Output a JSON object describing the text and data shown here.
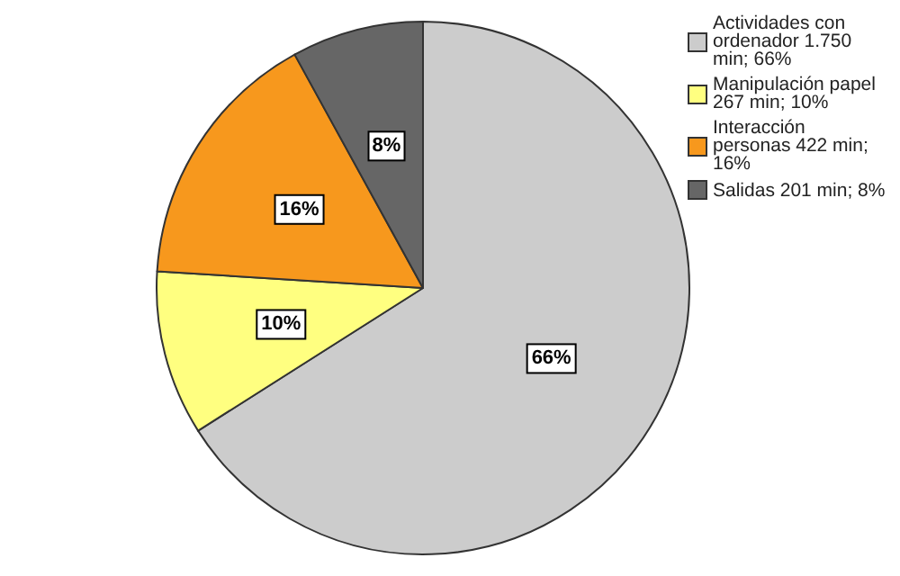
{
  "chart_data": {
    "type": "pie",
    "categories": [
      "Actividades con ordenador 1.750 min; 66%",
      "Manipulación papel 267 min; 10%",
      "Interacción personas 422 min; 16%",
      "Salidas 201 min; 8%"
    ],
    "values": [
      66,
      10,
      16,
      8
    ],
    "colors": [
      "#cccccc",
      "#ffff80",
      "#f7981d",
      "#666666"
    ],
    "value_labels": [
      "66%",
      "10%",
      "16%",
      "8%"
    ],
    "legend": "top right"
  }
}
